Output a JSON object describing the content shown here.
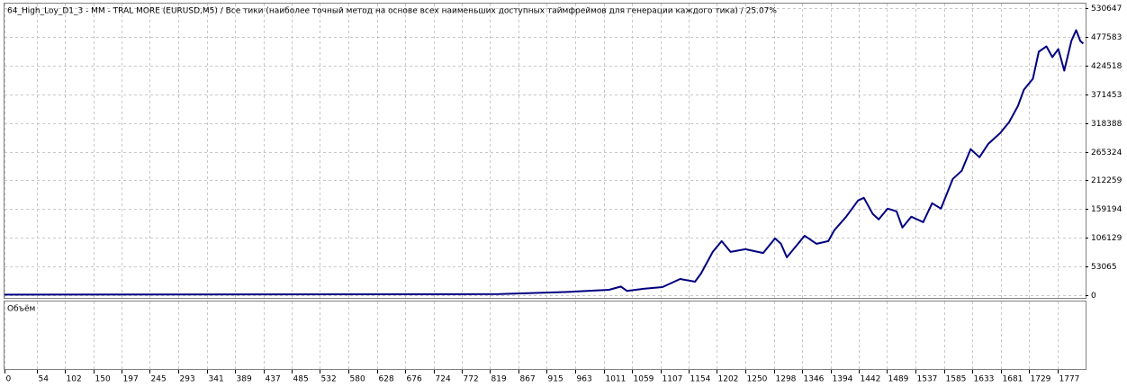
{
  "chart_data": {
    "type": "line",
    "title": "64_High_Loy_D1_3 - MM - TRAL MORE (EURUSD,M5) / Все тики (наиболее точный метод на основе всех наименьших доступных таймфреймов для генерации каждого тика) / 25.07%",
    "volume_panel_label": "Объём",
    "x": [
      0,
      835,
      950,
      1020,
      1040,
      1050,
      1080,
      1110,
      1140,
      1165,
      1175,
      1195,
      1210,
      1225,
      1250,
      1280,
      1300,
      1310,
      1320,
      1335,
      1350,
      1370,
      1390,
      1400,
      1420,
      1440,
      1450,
      1465,
      1475,
      1490,
      1505,
      1515,
      1530,
      1550,
      1565,
      1580,
      1600,
      1615,
      1630,
      1645,
      1660,
      1680,
      1695,
      1710,
      1720,
      1735,
      1745,
      1758,
      1768,
      1778,
      1788,
      1800,
      1808,
      1815,
      1820
    ],
    "series": [
      {
        "color": "#000080",
        "values": [
          1000,
          2000,
          6000,
          10000,
          16000,
          8000,
          12000,
          15000,
          30000,
          25000,
          40000,
          80000,
          100000,
          80000,
          85000,
          78000,
          105000,
          95000,
          70000,
          90000,
          110000,
          95000,
          100000,
          120000,
          145000,
          175000,
          180000,
          150000,
          140000,
          160000,
          155000,
          125000,
          145000,
          135000,
          170000,
          160000,
          215000,
          230000,
          270000,
          255000,
          280000,
          300000,
          320000,
          350000,
          380000,
          400000,
          450000,
          460000,
          440000,
          455000,
          415000,
          470000,
          490000,
          470000,
          465000
        ]
      }
    ],
    "xlim": [
      0,
      1824
    ],
    "ylim": [
      -5000,
      539000
    ],
    "xticks": [
      0,
      54,
      102,
      150,
      197,
      245,
      293,
      341,
      389,
      437,
      485,
      532,
      580,
      628,
      676,
      724,
      772,
      819,
      867,
      915,
      963,
      1011,
      1059,
      1107,
      1154,
      1202,
      1250,
      1298,
      1346,
      1394,
      1442,
      1489,
      1537,
      1585,
      1633,
      1681,
      1729,
      1777
    ],
    "yticks": [
      0,
      53065,
      106129,
      159194,
      212259,
      265324,
      318388,
      371453,
      424518,
      477583,
      530647
    ],
    "grid": true
  }
}
